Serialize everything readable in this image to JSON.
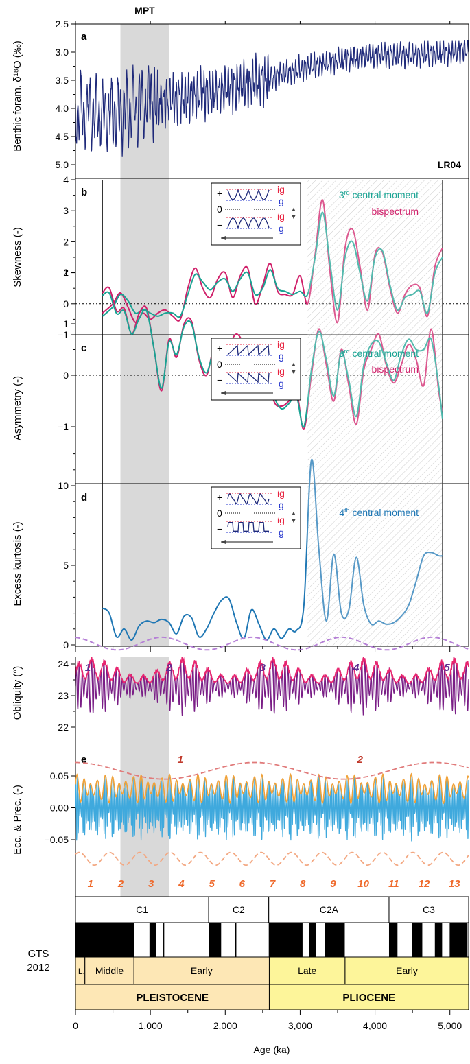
{
  "mpt_label": "MPT",
  "x_axis": {
    "label": "Age (ka)",
    "min": 0,
    "max": 5250,
    "ticks": [
      0,
      1000,
      2000,
      3000,
      4000,
      5000
    ],
    "tick_labels": [
      "0",
      "1,000",
      "2,000",
      "3,000",
      "4,000",
      "5,000"
    ]
  },
  "mpt_range_ka": [
    600,
    1250
  ],
  "analysis_window_ka": [
    360,
    4900
  ],
  "hatched_region_ka": [
    3100,
    4900
  ],
  "colors": {
    "lr04": "#1f2a7a",
    "bispectrum": "#d0206a",
    "third_moment": "#1aa393",
    "kurtosis": "#1f77b4",
    "obliquity_env": "#e8256f",
    "obliquity": "#7a1e86",
    "obliquity_long": "#b57fd6",
    "ecc": "#f0a23a",
    "prec": "#3fa9dd",
    "ecc_long": "#e07a7a",
    "ecc_short": "#f3a882",
    "label_purple": "#5e2d91",
    "label_red": "#c0392b",
    "label_orange": "#ef6a2c",
    "mpt_shade": "#d9d9d9",
    "pleistocene": "#fde7b5",
    "pliocene": "#fdf59a",
    "ig_color": "#e8223f",
    "g_color": "#2233cc"
  },
  "panels": {
    "a": {
      "letter": "a",
      "ylabel": "Benthic foram. δ¹⁸O (‰)",
      "ylim": [
        2.5,
        5.0
      ],
      "reversed": true,
      "tick_labels": [
        "2.5",
        "3.0",
        "3.5",
        "4.0",
        "4.5",
        "5.0"
      ],
      "tag": "LR04"
    },
    "b": {
      "letter": "b",
      "ylabel": "Skewness (-)",
      "ylim": [
        -1,
        4
      ],
      "tick_labels": [
        "−1",
        "0",
        "1",
        "2",
        "3",
        "4"
      ],
      "legend": [
        "3rd central moment",
        "bispectrum"
      ],
      "legend_sup": [
        "rd",
        ""
      ]
    },
    "c": {
      "letter": "c",
      "ylabel": "Asymmetry (-)",
      "ylim": [
        -1.5,
        2.2
      ],
      "tick_labels": [
        "−1",
        "0",
        "1",
        "2"
      ],
      "legend": [
        "3rd central moment",
        "bispectrum"
      ]
    },
    "d": {
      "letter": "d",
      "ylabel": "Excess kurtosis (-)",
      "ylim": [
        0,
        13.5
      ],
      "tick_labels": [
        "0",
        "5",
        "10"
      ],
      "legend": [
        "4th central moment"
      ]
    },
    "obliquity": {
      "ylabel": "Obliquity (°)",
      "ylim": [
        21.8,
        25.5
      ],
      "tick_labels": [
        "22",
        "23",
        "24"
      ],
      "cycle_labels": [
        "1",
        "2",
        "3",
        "4",
        "5"
      ]
    },
    "e": {
      "letter": "e",
      "ylabel": "Ecc. & Prec. (-)",
      "ylim": [
        -0.1,
        0.09
      ],
      "tick_labels": [
        "0.05",
        "0.00",
        "−0.05"
      ],
      "long_cycle_labels": [
        "1",
        "2"
      ],
      "short_cycle_labels": [
        "1",
        "2",
        "3",
        "4",
        "5",
        "6",
        "7",
        "8",
        "9",
        "10",
        "11",
        "12",
        "13"
      ]
    }
  },
  "inset_labels": {
    "plus": "+",
    "zero": "0",
    "minus": "−",
    "ig": "ig",
    "g": "g"
  },
  "timescale": {
    "label_line1": "GTS",
    "label_line2": "2012",
    "chrons": [
      {
        "name": "C1",
        "from": 0,
        "to": 1778
      },
      {
        "name": "C2",
        "from": 1778,
        "to": 2581
      },
      {
        "name": "C2A",
        "from": 2581,
        "to": 4187
      },
      {
        "name": "C3",
        "from": 4187,
        "to": 5250
      }
    ],
    "normal_polarity_ka": [
      [
        0,
        781
      ],
      [
        988,
        1072
      ],
      [
        1173,
        1185
      ],
      [
        1778,
        1945
      ],
      [
        2128,
        2148
      ],
      [
        2581,
        3032
      ],
      [
        3116,
        3207
      ],
      [
        3330,
        3596
      ],
      [
        4187,
        4300
      ],
      [
        4493,
        4631
      ],
      [
        4799,
        4896
      ],
      [
        4997,
        5235
      ]
    ],
    "subepochs": [
      {
        "name": "L.",
        "from": 0,
        "to": 126
      },
      {
        "name": "Middle",
        "from": 126,
        "to": 781
      },
      {
        "name": "Early",
        "from": 781,
        "to": 2588
      },
      {
        "name": "Late",
        "from": 2588,
        "to": 3600
      },
      {
        "name": "Early",
        "from": 3600,
        "to": 5250
      }
    ],
    "epochs": [
      {
        "name": "PLEISTOCENE",
        "from": 0,
        "to": 2588
      },
      {
        "name": "PLIOCENE",
        "from": 2588,
        "to": 5250
      }
    ]
  },
  "chart_data": [
    {
      "panel": "a",
      "type": "line",
      "title": "",
      "ylabel": "Benthic foram. δ¹⁸O (‰)",
      "xlabel": "Age (ka)",
      "series": [
        {
          "name": "LR04",
          "x_range": [
            0,
            5250
          ],
          "y_range": [
            2.8,
            5.0
          ],
          "trend_ka": [
            0,
            500,
            1000,
            1500,
            2000,
            2500,
            3000,
            3500,
            4000,
            4500,
            5000,
            5250
          ],
          "trend_mean": [
            4.05,
            4.1,
            3.9,
            3.8,
            3.65,
            3.5,
            3.3,
            3.15,
            3.05,
            3.05,
            3.0,
            2.95
          ]
        }
      ]
    },
    {
      "panel": "b",
      "type": "line",
      "ylabel": "Skewness (-)",
      "ylim": [
        -1,
        4
      ],
      "x": [
        360,
        500,
        600,
        700,
        800,
        900,
        1000,
        1100,
        1200,
        1300,
        1400,
        1500,
        1600,
        1700,
        1800,
        1900,
        2000,
        2100,
        2200,
        2300,
        2400,
        2500,
        2600,
        2700,
        2800,
        2900,
        3000,
        3100,
        3200,
        3300,
        3400,
        3500,
        3600,
        3700,
        3800,
        3900,
        4000,
        4100,
        4200,
        4300,
        4400,
        4500,
        4600,
        4700,
        4800,
        4900
      ],
      "series": [
        {
          "name": "bispectrum",
          "values": [
            -0.3,
            0.0,
            0.35,
            -0.1,
            -0.6,
            -0.3,
            -0.5,
            -0.3,
            -0.2,
            -0.4,
            -0.5,
            0.5,
            1.15,
            0.5,
            0.2,
            0.8,
            1.0,
            0.2,
            0.9,
            1.15,
            0.0,
            0.6,
            1.3,
            0.4,
            0.3,
            0.3,
            0.9,
            0.0,
            1.6,
            3.35,
            1.0,
            -0.6,
            1.8,
            2.4,
            1.2,
            -0.2,
            1.6,
            1.65,
            0.5,
            -0.3,
            0.3,
            0.6,
            0.5,
            -0.4,
            1.2,
            1.8
          ]
        },
        {
          "name": "3rd central moment",
          "values": [
            -0.4,
            -0.1,
            0.3,
            0.1,
            -0.3,
            -0.2,
            -0.3,
            -0.4,
            -0.3,
            -0.3,
            -0.4,
            0.3,
            0.95,
            0.7,
            0.45,
            0.7,
            0.8,
            0.4,
            0.8,
            1.0,
            0.3,
            0.5,
            1.1,
            0.5,
            0.4,
            0.3,
            0.4,
            0.3,
            1.5,
            2.95,
            1.3,
            -0.2,
            1.5,
            2.0,
            1.0,
            0.1,
            1.5,
            1.7,
            0.6,
            -0.2,
            0.2,
            0.3,
            0.4,
            -0.3,
            1.0,
            1.5
          ]
        }
      ]
    },
    {
      "panel": "c",
      "type": "line",
      "ylabel": "Asymmetry (-)",
      "ylim": [
        -1.5,
        2.2
      ],
      "x": [
        360,
        450,
        550,
        650,
        750,
        850,
        950,
        1050,
        1150,
        1250,
        1350,
        1450,
        1550,
        1650,
        1750,
        1850,
        1950,
        2050,
        2150,
        2250,
        2350,
        2450,
        2550,
        2650,
        2750,
        2850,
        2950,
        3050,
        3150,
        3250,
        3350,
        3450,
        3550,
        3650,
        3750,
        3850,
        3950,
        4050,
        4150,
        4250,
        4350,
        4450,
        4550,
        4650,
        4750,
        4850,
        4900
      ],
      "series": [
        {
          "name": "bispectrum",
          "values": [
            1.6,
            1.7,
            1.25,
            1.3,
            0.8,
            1.2,
            1.3,
            0.5,
            -0.3,
            0.7,
            0.35,
            1.0,
            1.05,
            0.3,
            0.0,
            0.55,
            0.5,
            0.6,
            0.8,
            0.6,
            0.2,
            0.5,
            0.2,
            -0.5,
            -0.6,
            -0.5,
            -0.3,
            -1.05,
            0.0,
            0.9,
            0.2,
            -0.5,
            0.5,
            -0.2,
            -0.95,
            0.1,
            0.5,
            0.8,
            0.2,
            -0.15,
            0.2,
            0.6,
            0.3,
            -0.2,
            0.9,
            -0.3,
            -0.7
          ]
        },
        {
          "name": "3rd central moment",
          "values": [
            1.55,
            1.6,
            1.2,
            1.25,
            0.8,
            1.1,
            1.25,
            0.5,
            -0.25,
            0.65,
            0.4,
            0.95,
            1.0,
            0.35,
            0.05,
            0.5,
            0.55,
            0.55,
            0.7,
            0.6,
            0.3,
            0.45,
            0.2,
            -0.4,
            -0.65,
            -0.55,
            -0.4,
            -1.0,
            0.1,
            0.85,
            0.3,
            -0.4,
            0.45,
            -0.1,
            -0.8,
            0.2,
            0.6,
            0.65,
            0.25,
            -0.1,
            0.4,
            0.7,
            0.5,
            0.5,
            0.7,
            -0.2,
            -0.85
          ]
        }
      ]
    },
    {
      "panel": "d",
      "type": "line",
      "ylabel": "Excess kurtosis (-)",
      "ylim": [
        0,
        13.5
      ],
      "x": [
        360,
        450,
        550,
        650,
        750,
        850,
        950,
        1050,
        1150,
        1250,
        1350,
        1450,
        1550,
        1650,
        1750,
        1850,
        1950,
        2050,
        2150,
        2250,
        2350,
        2450,
        2550,
        2650,
        2750,
        2850,
        2950,
        3050,
        3150,
        3250,
        3350,
        3450,
        3550,
        3650,
        3750,
        3850,
        3950,
        4050,
        4150,
        4250,
        4350,
        4450,
        4550,
        4650,
        4750,
        4850,
        4900
      ],
      "series": [
        {
          "name": "4th central moment",
          "values": [
            2.3,
            2.0,
            0.5,
            1.0,
            0.3,
            1.2,
            1.5,
            1.4,
            1.6,
            1.4,
            0.7,
            1.8,
            1.7,
            0.5,
            1.0,
            2.0,
            2.8,
            2.9,
            1.4,
            0.4,
            2.2,
            1.3,
            0.3,
            1.0,
            0.4,
            1.0,
            0.9,
            2.5,
            11.6,
            6.0,
            1.5,
            5.7,
            2.0,
            2.2,
            5.5,
            2.5,
            1.3,
            1.5,
            1.3,
            1.4,
            1.8,
            2.5,
            4.0,
            5.6,
            5.8,
            5.6,
            5.6
          ]
        }
      ]
    },
    {
      "panel": "obliquity",
      "type": "line",
      "ylabel": "Obliquity (°)",
      "ylim": [
        21.8,
        25.5
      ],
      "series": [
        {
          "name": "obliquity",
          "period_ka": 41,
          "mean": 23.3,
          "amplitude_range": [
            0.4,
            1.2
          ]
        },
        {
          "name": "obliquity envelope (upper)",
          "approx_range": [
            23.6,
            24.4
          ]
        },
        {
          "name": "obliquity long-period modulation",
          "period_ka": 1200,
          "approx_range": [
            24.4,
            24.9
          ]
        }
      ]
    },
    {
      "panel": "e",
      "type": "line",
      "ylabel": "Ecc. & Prec. (-)",
      "ylim": [
        -0.1,
        0.09
      ],
      "series": [
        {
          "name": "precession",
          "period_ka": 21,
          "range": [
            -0.055,
            0.055
          ]
        },
        {
          "name": "eccentricity",
          "period_ka": 100,
          "range": [
            0.005,
            0.055
          ]
        },
        {
          "name": "eccentricity 2.4 Myr modulation",
          "period_ka": 2400,
          "approx_range": [
            0.045,
            0.075
          ]
        },
        {
          "name": "eccentricity 405 kyr modulation",
          "period_ka": 405,
          "approx_range": [
            -0.095,
            -0.065
          ]
        }
      ]
    }
  ]
}
